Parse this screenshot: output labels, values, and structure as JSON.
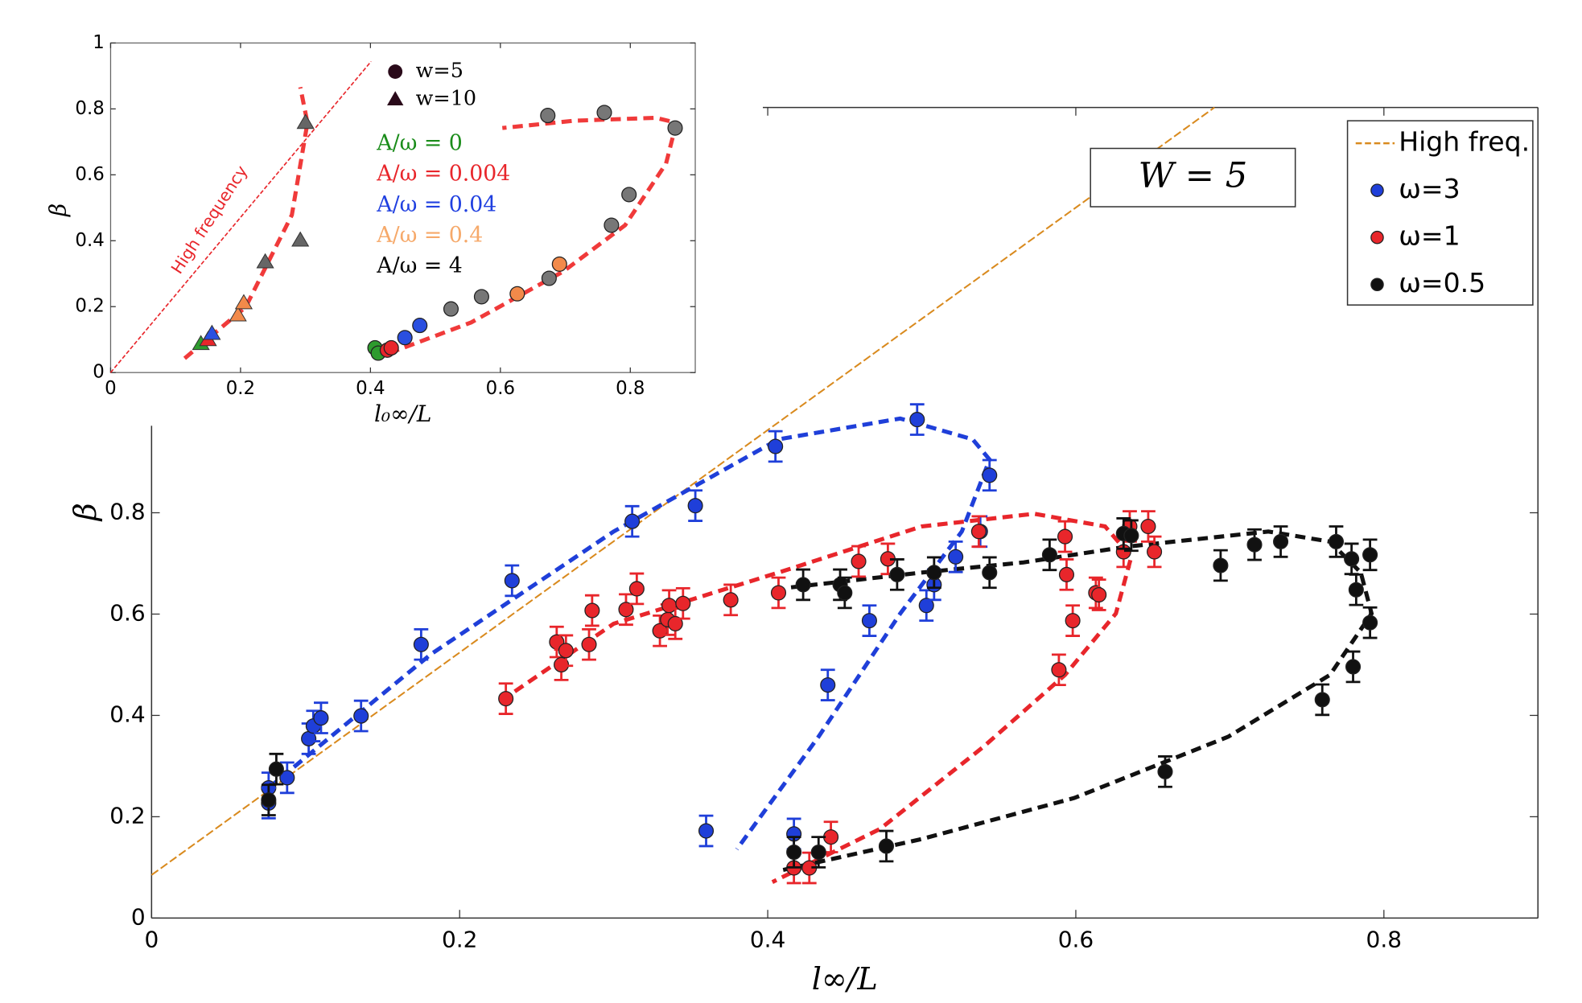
{
  "chart_data": [
    {
      "type": "scatter",
      "xlabel": "l∞/L",
      "ylabel": "β",
      "annotation": "W = 5",
      "xlim": [
        0,
        0.9
      ],
      "ylim": [
        0,
        1.6
      ],
      "xticks": [
        0,
        0.2,
        0.4,
        0.6,
        0.8
      ],
      "yticks": [
        0,
        0.2,
        0.4,
        0.6,
        0.8
      ],
      "reference_line": {
        "name": "High freq.",
        "color": "#d98a1e",
        "x": [
          0,
          0.69
        ],
        "values": [
          0.085,
          1.6
        ]
      },
      "series": [
        {
          "name": "ω=3",
          "color": "#1f3fd9",
          "error": 0.03,
          "x": [
            0.076,
            0.076,
            0.088,
            0.102,
            0.105,
            0.11,
            0.136,
            0.175,
            0.234,
            0.312,
            0.353,
            0.36,
            0.405,
            0.439,
            0.466,
            0.497,
            0.503,
            0.508,
            0.522,
            0.538,
            0.544,
            0.417
          ],
          "values": [
            0.257,
            0.227,
            0.277,
            0.354,
            0.379,
            0.395,
            0.399,
            0.54,
            0.666,
            0.783,
            0.814,
            0.172,
            0.931,
            0.46,
            0.587,
            0.984,
            0.617,
            0.658,
            0.713,
            0.763,
            0.874,
            0.166
          ]
        },
        {
          "name": "ω=1",
          "color": "#e8262b",
          "error": 0.03,
          "x": [
            0.23,
            0.263,
            0.266,
            0.269,
            0.284,
            0.286,
            0.308,
            0.315,
            0.33,
            0.335,
            0.336,
            0.34,
            0.345,
            0.376,
            0.407,
            0.459,
            0.478,
            0.537,
            0.593,
            0.594,
            0.598,
            0.589,
            0.613,
            0.615,
            0.631,
            0.635,
            0.647,
            0.651,
            0.417,
            0.427,
            0.441
          ],
          "values": [
            0.433,
            0.545,
            0.5,
            0.528,
            0.54,
            0.607,
            0.609,
            0.65,
            0.567,
            0.589,
            0.617,
            0.581,
            0.621,
            0.628,
            0.642,
            0.704,
            0.709,
            0.763,
            0.753,
            0.678,
            0.587,
            0.49,
            0.642,
            0.638,
            0.723,
            0.773,
            0.773,
            0.723,
            0.099,
            0.099,
            0.16
          ]
        },
        {
          "name": "ω=0.5",
          "color": "#111111",
          "error": 0.03,
          "x": [
            0.081,
            0.076,
            0.423,
            0.447,
            0.45,
            0.484,
            0.508,
            0.544,
            0.583,
            0.631,
            0.636,
            0.694,
            0.716,
            0.733,
            0.769,
            0.779,
            0.782,
            0.791,
            0.791,
            0.78,
            0.76,
            0.658,
            0.477,
            0.433,
            0.417
          ],
          "values": [
            0.294,
            0.233,
            0.658,
            0.658,
            0.642,
            0.678,
            0.682,
            0.682,
            0.717,
            0.759,
            0.755,
            0.696,
            0.737,
            0.743,
            0.743,
            0.709,
            0.648,
            0.717,
            0.583,
            0.496,
            0.431,
            0.289,
            0.142,
            0.13,
            0.13
          ]
        }
      ],
      "fits": [
        {
          "color": "#1f3fd9",
          "x": [
            0.076,
            0.181,
            0.3,
            0.407,
            0.486,
            0.533,
            0.544,
            0.526,
            0.486,
            0.433,
            0.38
          ],
          "values": [
            0.257,
            0.52,
            0.763,
            0.945,
            0.986,
            0.945,
            0.905,
            0.763,
            0.601,
            0.358,
            0.136
          ]
        },
        {
          "color": "#e8262b",
          "x": [
            0.227,
            0.3,
            0.407,
            0.5,
            0.573,
            0.619,
            0.636,
            0.626,
            0.593,
            0.54,
            0.473,
            0.403
          ],
          "values": [
            0.429,
            0.581,
            0.682,
            0.773,
            0.798,
            0.773,
            0.713,
            0.601,
            0.48,
            0.338,
            0.176,
            0.071
          ]
        },
        {
          "color": "#111111",
          "x": [
            0.41,
            0.5,
            0.599,
            0.699,
            0.765,
            0.792,
            0.785,
            0.765,
            0.725,
            0.633,
            0.566,
            0.5,
            0.413
          ],
          "values": [
            0.095,
            0.156,
            0.237,
            0.358,
            0.48,
            0.601,
            0.682,
            0.743,
            0.763,
            0.733,
            0.702,
            0.682,
            0.652
          ]
        }
      ]
    },
    {
      "type": "scatter",
      "xlabel": "l₀∞/L",
      "ylabel": "β",
      "xlim": [
        0,
        0.9
      ],
      "ylim": [
        0,
        1
      ],
      "xticks": [
        0,
        0.2,
        0.4,
        0.6,
        0.8
      ],
      "yticks": [
        0,
        0.2,
        0.4,
        0.6,
        0.8,
        1
      ],
      "shape_legend": [
        {
          "label": "w=5",
          "marker": "circle"
        },
        {
          "label": "w=10",
          "marker": "triangle"
        }
      ],
      "color_legend": [
        {
          "label": "A/ω = 0",
          "color": "#1a8c1a"
        },
        {
          "label": "A/ω = 0.004",
          "color": "#e8262b"
        },
        {
          "label": "A/ω = 0.04",
          "color": "#2040e0"
        },
        {
          "label": "A/ω = 0.4",
          "color": "#f6a96a"
        },
        {
          "label": "A/ω = 4",
          "color": "#000000"
        }
      ],
      "reference_line": {
        "name": "High frequency",
        "color": "#e8262b",
        "x": [
          0,
          0.401
        ],
        "values": [
          0,
          0.944
        ]
      },
      "series": [
        {
          "color": "#2e9b2e",
          "marker": "circle",
          "x": [
            0.407,
            0.412
          ],
          "values": [
            0.075,
            0.059
          ]
        },
        {
          "color": "#2e9b2e",
          "marker": "triangle",
          "x": [
            0.139
          ],
          "values": [
            0.087
          ]
        },
        {
          "color": "#e8262b",
          "marker": "circle",
          "x": [
            0.426,
            0.432
          ],
          "values": [
            0.068,
            0.075
          ]
        },
        {
          "color": "#e8262b",
          "marker": "triangle",
          "x": [
            0.15
          ],
          "values": [
            0.099
          ]
        },
        {
          "color": "#2a4fe0",
          "marker": "circle",
          "x": [
            0.453,
            0.476
          ],
          "values": [
            0.106,
            0.143
          ]
        },
        {
          "color": "#2a4fe0",
          "marker": "triangle",
          "x": [
            0.156
          ],
          "values": [
            0.118
          ]
        },
        {
          "color": "#f28a4a",
          "marker": "circle",
          "x": [
            0.626,
            0.691
          ],
          "values": [
            0.239,
            0.329
          ]
        },
        {
          "color": "#f28a4a",
          "marker": "triangle",
          "x": [
            0.196,
            0.205
          ],
          "values": [
            0.174,
            0.211
          ]
        },
        {
          "color": "#777777",
          "marker": "circle",
          "x": [
            0.524,
            0.571,
            0.675,
            0.798,
            0.771,
            0.673,
            0.76,
            0.869
          ],
          "values": [
            0.193,
            0.23,
            0.286,
            0.54,
            0.447,
            0.78,
            0.789,
            0.742
          ]
        },
        {
          "color": "#666666",
          "marker": "triangle",
          "x": [
            0.238,
            0.292,
            0.3
          ],
          "values": [
            0.335,
            0.401,
            0.758
          ]
        }
      ],
      "fits": [
        {
          "color": "#f03a3a",
          "x": [
            0.114,
            0.208,
            0.279,
            0.303,
            0.292
          ],
          "values": [
            0.043,
            0.199,
            0.478,
            0.758,
            0.866
          ]
        },
        {
          "color": "#f03a3a",
          "x": [
            0.429,
            0.555,
            0.697,
            0.792,
            0.855,
            0.871,
            0.839,
            0.713,
            0.603
          ],
          "values": [
            0.059,
            0.152,
            0.307,
            0.447,
            0.634,
            0.758,
            0.773,
            0.764,
            0.742
          ]
        }
      ]
    }
  ]
}
